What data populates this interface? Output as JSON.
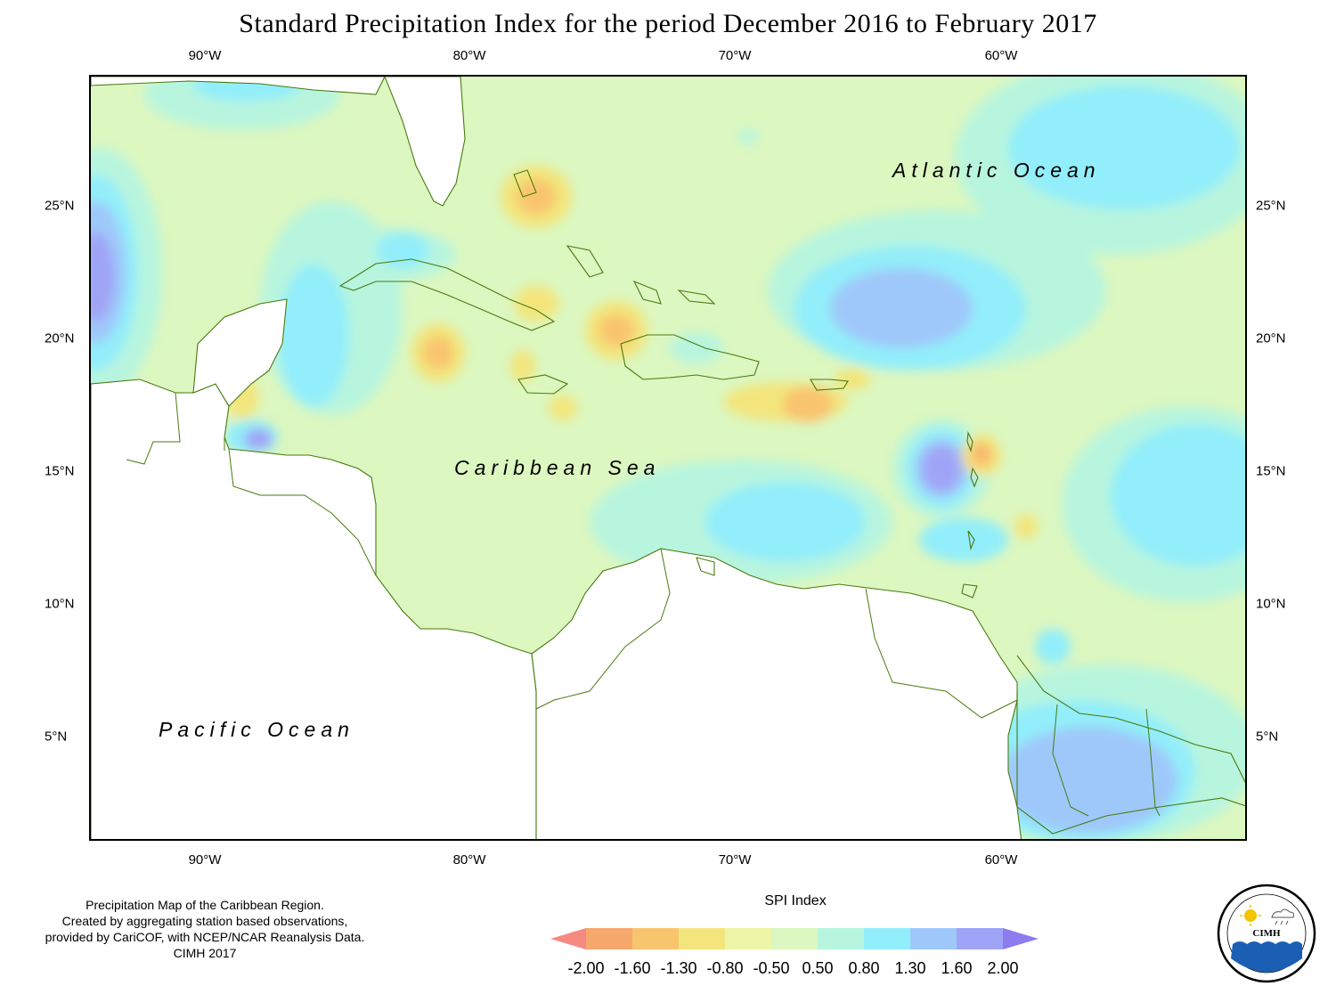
{
  "title": "Standard Precipitation Index for the period December 2016 to February 2017",
  "axes": {
    "longitude_ticks": [
      "90°W",
      "80°W",
      "70°W",
      "60°W"
    ],
    "latitude_ticks": [
      "25°N",
      "20°N",
      "15°N",
      "10°N",
      "5°N"
    ]
  },
  "labels": {
    "atlantic": "Atlantic Ocean",
    "caribbean": "Caribbean Sea",
    "pacific": "Pacific Ocean"
  },
  "credit": {
    "line1": "Precipitation Map of the Caribbean Region.",
    "line2": "Created by aggregating station based observations,",
    "line3": "provided by CariCOF, with NCEP/NCAR Reanalysis Data.",
    "line4": "CIMH 2017"
  },
  "legend": {
    "title": "SPI Index",
    "breaks": [
      "-2.00",
      "-1.60",
      "-1.30",
      "-0.80",
      "-0.50",
      "0.50",
      "0.80",
      "1.30",
      "1.60",
      "2.00"
    ],
    "colors": [
      "#f58a82",
      "#f7a86c",
      "#f9c46e",
      "#f3e57c",
      "#eef5a6",
      "#dcf7c0",
      "#b8f5de",
      "#92eefa",
      "#9fc8fa",
      "#a0a4f6",
      "#8c7cf0"
    ]
  },
  "logo": {
    "name": "Caribbean Institute for Meteorology and Hydrology",
    "abbr": "CIMH"
  }
}
